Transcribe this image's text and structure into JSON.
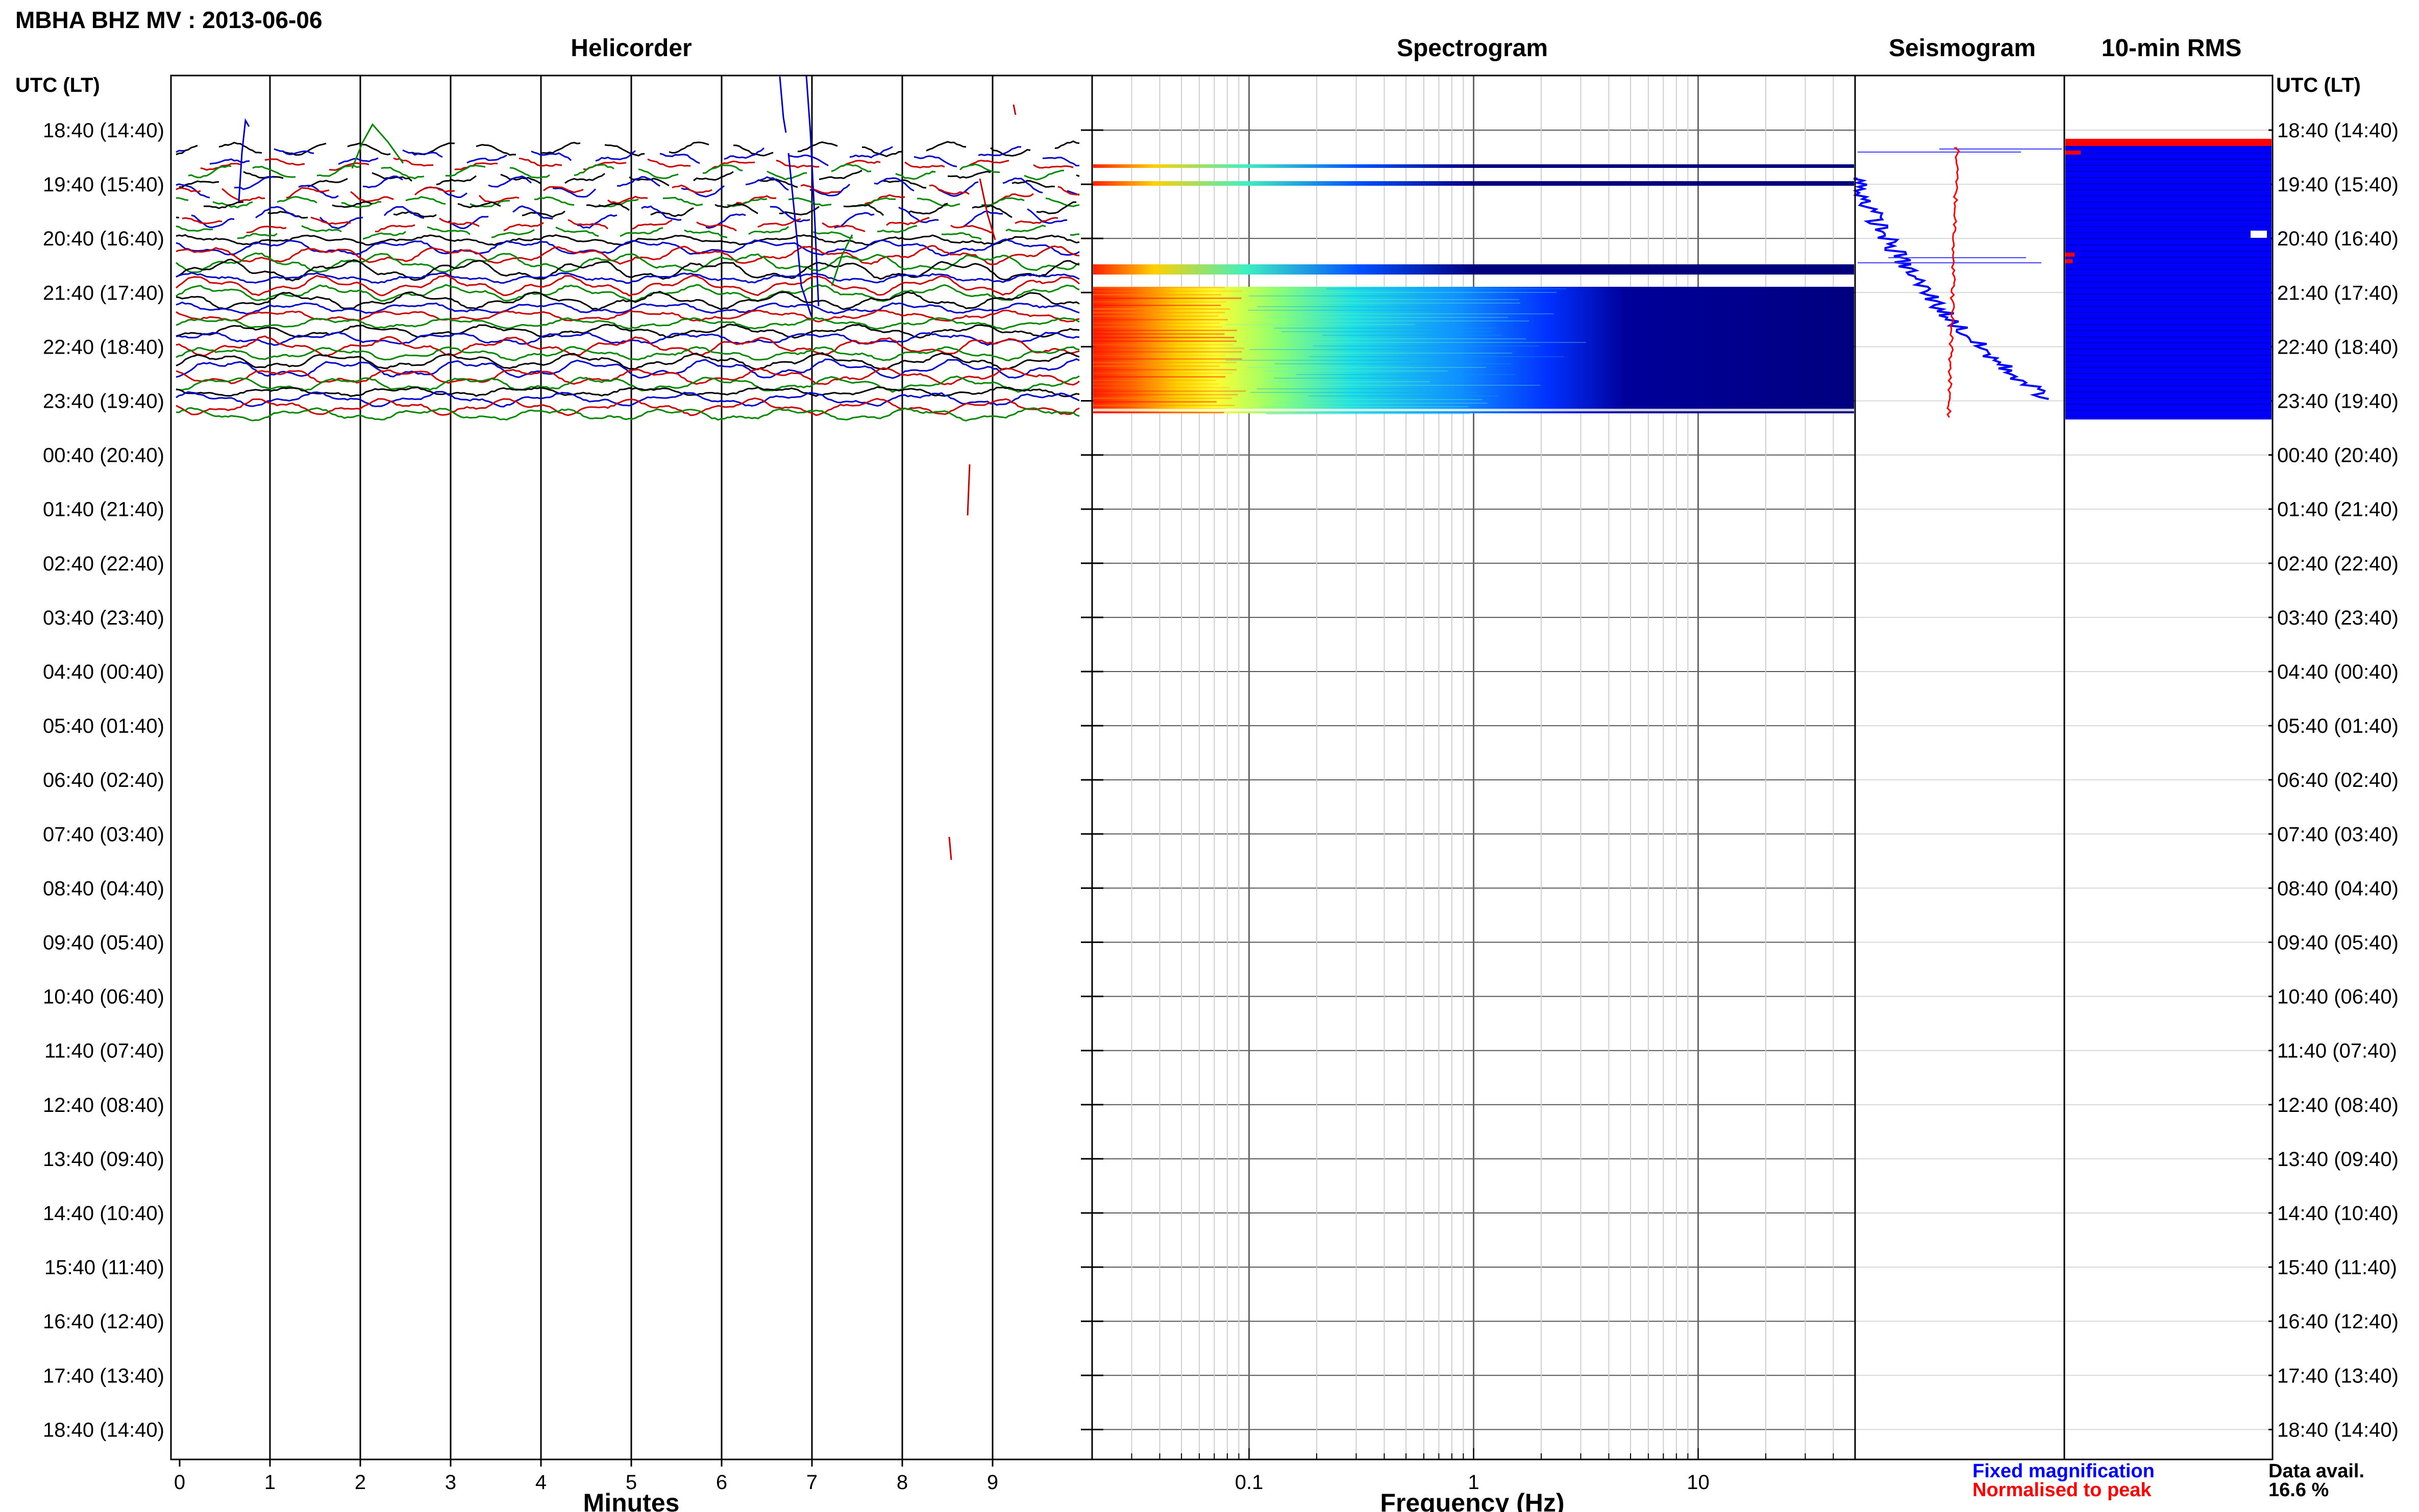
{
  "header": {
    "title": "MBHA BHZ MV : 2013-06-06"
  },
  "panels": {
    "helicorder": "Helicorder",
    "spectrogram": "Spectrogram",
    "seismogram": "Seismogram",
    "rms": "10-min RMS"
  },
  "time_axis": {
    "header": "UTC (LT)",
    "labels": [
      "18:40 (14:40)",
      "19:40 (15:40)",
      "20:40 (16:40)",
      "21:40 (17:40)",
      "22:40 (18:40)",
      "23:40 (19:40)",
      "00:40 (20:40)",
      "01:40 (21:40)",
      "02:40 (22:40)",
      "03:40 (23:40)",
      "04:40 (00:40)",
      "05:40 (01:40)",
      "06:40 (02:40)",
      "07:40 (03:40)",
      "08:40 (04:40)",
      "09:40 (05:40)",
      "10:40 (06:40)",
      "11:40 (07:40)",
      "12:40 (08:40)",
      "13:40 (09:40)",
      "14:40 (10:40)",
      "15:40 (11:40)",
      "16:40 (12:40)",
      "17:40 (13:40)",
      "18:40 (14:40)"
    ]
  },
  "x_axes": {
    "minutes": {
      "label": "Minutes",
      "ticks": [
        "0",
        "1",
        "2",
        "3",
        "4",
        "5",
        "6",
        "7",
        "8",
        "9"
      ]
    },
    "frequency": {
      "label": "Frequency (Hz)",
      "ticks": [
        "0.1",
        "1",
        "10"
      ]
    }
  },
  "legend": {
    "fixed": "Fixed magnification",
    "normalised": "Normalised to peak",
    "fixed_color": "#0000ff",
    "normalised_color": "#ff0000"
  },
  "data_avail": {
    "label": "Data avail.",
    "value": "16.6 %"
  },
  "chart_data": [
    {
      "type": "line",
      "title": "Helicorder",
      "xlabel": "Minutes",
      "xlim": [
        0,
        10
      ],
      "trace_colors": [
        "#000000",
        "#0000cc",
        "#cc0000",
        "#008800"
      ],
      "data_window_hours": [
        "18:40",
        "23:55"
      ]
    },
    {
      "type": "heatmap",
      "title": "Spectrogram",
      "xlabel": "Frequency (Hz)",
      "x_scale": "log",
      "xlim": [
        0.02,
        50
      ],
      "colormap": [
        "#00007f",
        "#0000ff",
        "#00ffff",
        "#ffff00",
        "#ff7f00",
        "#ff0000"
      ],
      "data_window_hours": [
        "18:40",
        "23:55"
      ]
    },
    {
      "type": "line",
      "title": "Seismogram",
      "series": [
        {
          "name": "Fixed magnification",
          "color": "#0000ff"
        },
        {
          "name": "Normalised to peak",
          "color": "#ff0000"
        }
      ]
    },
    {
      "type": "bar",
      "title": "10-min RMS",
      "color": "#0000ff",
      "peak_color": "#ff0000",
      "data_window_hours": [
        "18:40",
        "23:55"
      ]
    }
  ]
}
